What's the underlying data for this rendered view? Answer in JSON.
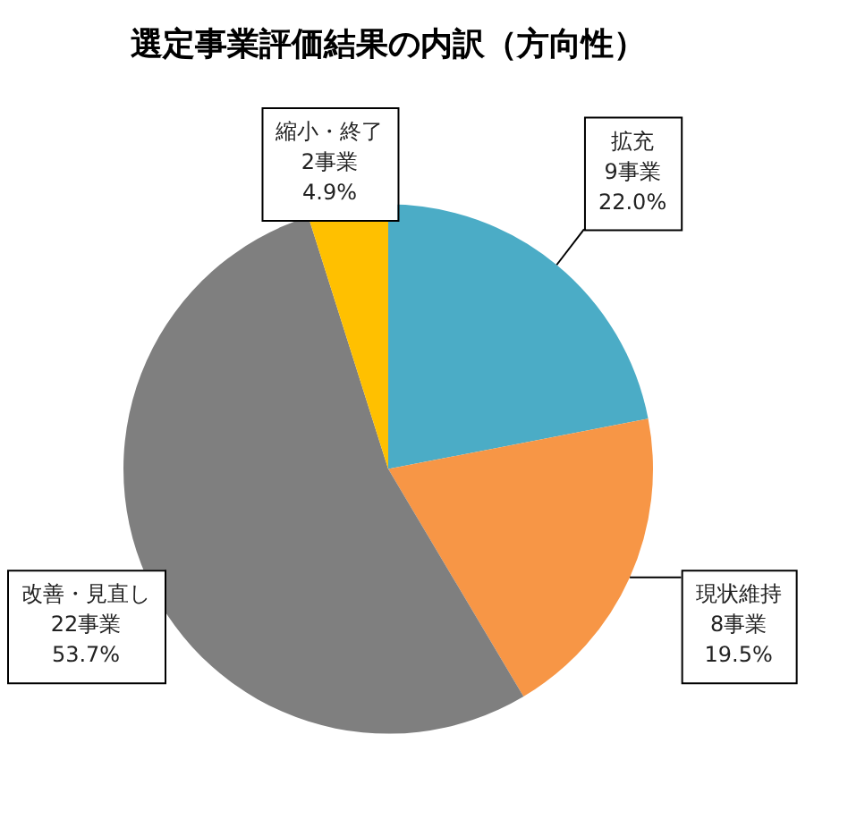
{
  "chart_data": {
    "type": "pie",
    "title": "選定事業評価結果の内訳（方向性）",
    "categories": [
      "拡充",
      "現状維持",
      "改善・見直し",
      "縮小・終了"
    ],
    "values": [
      9,
      8,
      22,
      2
    ],
    "value_labels": [
      "9事業\n22.0%",
      "8事業\n19.5%",
      "22事業\n53.7%",
      "2事業\n4.9%"
    ],
    "colors": [
      "#4bacc6",
      "#f79646",
      "#7f7f7f",
      "#ffc000"
    ],
    "legend": false
  }
}
